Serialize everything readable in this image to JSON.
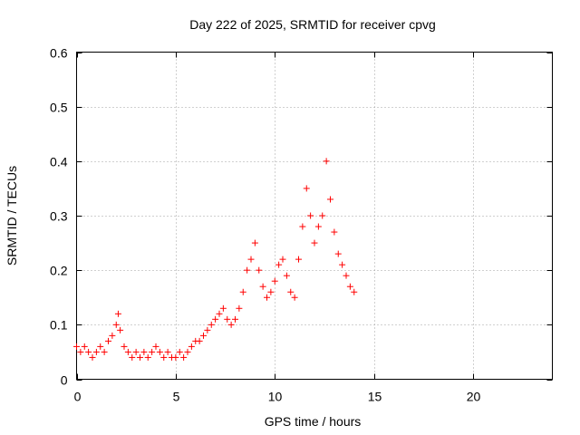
{
  "chart_data": {
    "type": "scatter",
    "title": "Day 222 of 2025, SRMTID for receiver cpvg",
    "xlabel": "GPS time / hours",
    "ylabel": "SRMTID / TECUs",
    "xlim": [
      0,
      24
    ],
    "ylim": [
      0,
      0.6
    ],
    "xticks": [
      0,
      5,
      10,
      15,
      20
    ],
    "yticks": [
      0,
      0.1,
      0.2,
      0.3,
      0.4,
      0.5,
      0.6
    ],
    "xtick_labels": [
      "0",
      "5",
      "10",
      "15",
      "20"
    ],
    "ytick_labels": [
      "0",
      "0.1",
      "0.2",
      "0.3",
      "0.4",
      "0.5",
      "0.6"
    ],
    "grid": true,
    "marker": "+",
    "color": "#ff0000",
    "series": [
      {
        "name": "SRMTID",
        "x": [
          0.0,
          0.2,
          0.4,
          0.6,
          0.8,
          1.0,
          1.2,
          1.4,
          1.6,
          1.8,
          2.0,
          2.1,
          2.2,
          2.4,
          2.6,
          2.8,
          3.0,
          3.2,
          3.4,
          3.6,
          3.8,
          4.0,
          4.2,
          4.4,
          4.6,
          4.8,
          5.0,
          5.2,
          5.4,
          5.6,
          5.8,
          6.0,
          6.2,
          6.4,
          6.6,
          6.8,
          7.0,
          7.2,
          7.4,
          7.6,
          7.8,
          8.0,
          8.2,
          8.4,
          8.6,
          8.8,
          9.0,
          9.2,
          9.4,
          9.6,
          9.8,
          10.0,
          10.2,
          10.4,
          10.6,
          10.8,
          11.0,
          11.2,
          11.4,
          11.6,
          11.8,
          12.0,
          12.2,
          12.4,
          12.6,
          12.8,
          13.0,
          13.2,
          13.4,
          13.6,
          13.8,
          14.0
        ],
        "y": [
          0.06,
          0.05,
          0.06,
          0.05,
          0.04,
          0.05,
          0.06,
          0.05,
          0.07,
          0.08,
          0.1,
          0.12,
          0.09,
          0.06,
          0.05,
          0.04,
          0.05,
          0.04,
          0.05,
          0.04,
          0.05,
          0.06,
          0.05,
          0.04,
          0.05,
          0.04,
          0.04,
          0.05,
          0.04,
          0.05,
          0.06,
          0.07,
          0.07,
          0.08,
          0.09,
          0.1,
          0.11,
          0.12,
          0.13,
          0.11,
          0.1,
          0.11,
          0.13,
          0.16,
          0.2,
          0.22,
          0.25,
          0.2,
          0.17,
          0.15,
          0.16,
          0.18,
          0.21,
          0.22,
          0.19,
          0.16,
          0.15,
          0.22,
          0.28,
          0.35,
          0.3,
          0.25,
          0.28,
          0.3,
          0.4,
          0.33,
          0.27,
          0.23,
          0.21,
          0.19,
          0.17,
          0.16
        ]
      }
    ]
  }
}
